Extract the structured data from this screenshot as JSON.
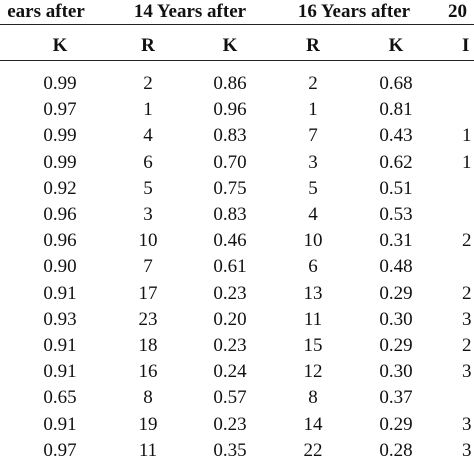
{
  "table": {
    "group_headers": [
      "ears after",
      "14 Years after",
      "16 Years after",
      "20"
    ],
    "column_headers": [
      "K",
      "R",
      "K",
      "R",
      "K",
      "I"
    ],
    "rows": [
      [
        "0.99",
        "2",
        "0.86",
        "2",
        "0.68",
        ""
      ],
      [
        "0.97",
        "1",
        "0.96",
        "1",
        "0.81",
        ""
      ],
      [
        "0.99",
        "4",
        "0.83",
        "7",
        "0.43",
        "1"
      ],
      [
        "0.99",
        "6",
        "0.70",
        "3",
        "0.62",
        "1"
      ],
      [
        "0.92",
        "5",
        "0.75",
        "5",
        "0.51",
        ""
      ],
      [
        "0.96",
        "3",
        "0.83",
        "4",
        "0.53",
        ""
      ],
      [
        "0.96",
        "10",
        "0.46",
        "10",
        "0.31",
        "2"
      ],
      [
        "0.90",
        "7",
        "0.61",
        "6",
        "0.48",
        ""
      ],
      [
        "0.91",
        "17",
        "0.23",
        "13",
        "0.29",
        "2"
      ],
      [
        "0.93",
        "23",
        "0.20",
        "11",
        "0.30",
        "3"
      ],
      [
        "0.91",
        "18",
        "0.23",
        "15",
        "0.29",
        "2"
      ],
      [
        "0.91",
        "16",
        "0.24",
        "12",
        "0.30",
        "3"
      ],
      [
        "0.65",
        "8",
        "0.57",
        "8",
        "0.37",
        ""
      ],
      [
        "0.91",
        "19",
        "0.23",
        "14",
        "0.29",
        "3"
      ],
      [
        "0.97",
        "11",
        "0.35",
        "22",
        "0.28",
        "3"
      ]
    ]
  }
}
